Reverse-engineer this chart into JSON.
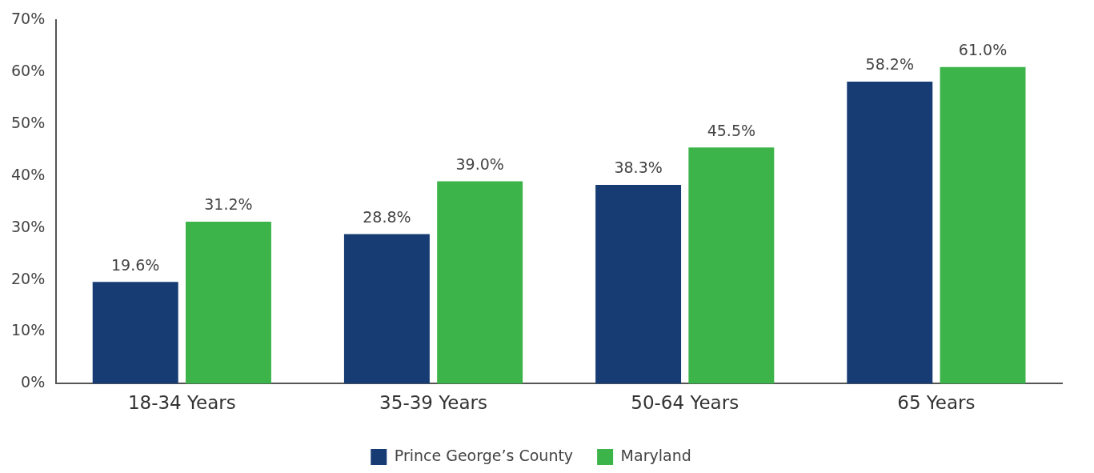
{
  "chart_data": {
    "type": "bar",
    "categories": [
      "18-34 Years",
      "35-39 Years",
      "50-64 Years",
      "65 Years"
    ],
    "series": [
      {
        "name": "Prince George’s County",
        "color": "#173c73",
        "values": [
          19.6,
          28.8,
          38.3,
          58.2
        ],
        "value_labels": [
          "19.6%",
          "28.8%",
          "38.3%",
          "58.2%"
        ]
      },
      {
        "name": "Maryland",
        "color": "#3cb44a",
        "values": [
          31.2,
          39.0,
          45.5,
          61.0
        ],
        "value_labels": [
          "31.2%",
          "39.0%",
          "45.5%",
          "61.0%"
        ]
      }
    ],
    "ylim": [
      0,
      70
    ],
    "yticks": [
      {
        "value": 0,
        "label": "0%"
      },
      {
        "value": 10,
        "label": "10%"
      },
      {
        "value": 20,
        "label": "20%"
      },
      {
        "value": 30,
        "label": "30%"
      },
      {
        "value": 40,
        "label": "40%"
      },
      {
        "value": 50,
        "label": "50%"
      },
      {
        "value": 60,
        "label": "60%"
      },
      {
        "value": 70,
        "label": "70%"
      }
    ],
    "grid": false,
    "legend": "bottom"
  }
}
